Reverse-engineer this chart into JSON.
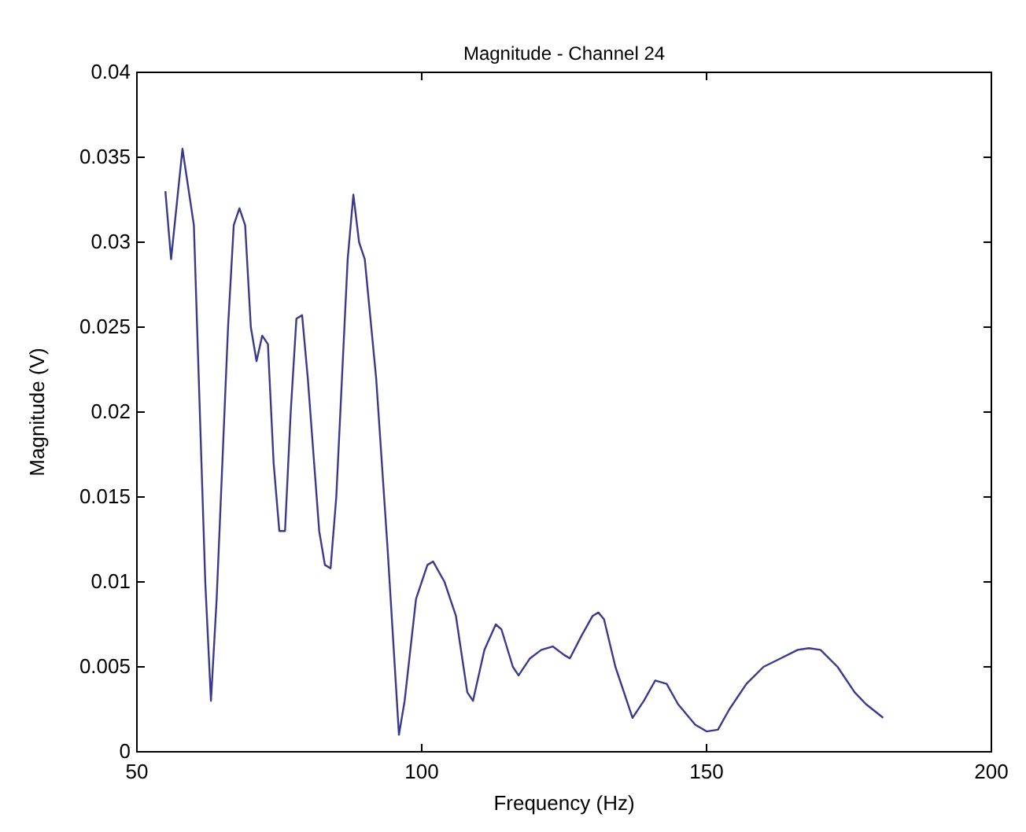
{
  "chart_data": {
    "type": "line",
    "title": "Magnitude - Channel 24",
    "xlabel": "Frequency (Hz)",
    "ylabel": "Magnitude (V)",
    "x": [
      55,
      56,
      58,
      60,
      62,
      63,
      64,
      66,
      67,
      68,
      69,
      70,
      71,
      72,
      73,
      74,
      75,
      76,
      77,
      78,
      79,
      80,
      82,
      83,
      84,
      85,
      86,
      87,
      88,
      89,
      90,
      92,
      94,
      96,
      97,
      99,
      101,
      102,
      104,
      106,
      108,
      109,
      111,
      113,
      114,
      116,
      117,
      119,
      121,
      123,
      125,
      126,
      128,
      130,
      131,
      132,
      134,
      136,
      137,
      139,
      141,
      143,
      145,
      148,
      150,
      152,
      154,
      157,
      160,
      163,
      166,
      168,
      170,
      173,
      176,
      178,
      181
    ],
    "series": [
      {
        "color": "#3a3a8c",
        "values": [
          0.033,
          0.029,
          0.0355,
          0.031,
          0.01,
          0.003,
          0.009,
          0.025,
          0.031,
          0.032,
          0.031,
          0.025,
          0.023,
          0.0245,
          0.024,
          0.017,
          0.013,
          0.013,
          0.02,
          0.0255,
          0.0257,
          0.022,
          0.013,
          0.011,
          0.0108,
          0.015,
          0.022,
          0.029,
          0.0328,
          0.03,
          0.029,
          0.022,
          0.012,
          0.001,
          0.003,
          0.009,
          0.011,
          0.0112,
          0.01,
          0.008,
          0.0035,
          0.003,
          0.006,
          0.0075,
          0.0072,
          0.005,
          0.0045,
          0.0055,
          0.006,
          0.0062,
          0.0057,
          0.0055,
          0.0068,
          0.008,
          0.0082,
          0.0078,
          0.005,
          0.003,
          0.002,
          0.003,
          0.0042,
          0.004,
          0.0028,
          0.0016,
          0.0012,
          0.0013,
          0.0025,
          0.004,
          0.005,
          0.0055,
          0.006,
          0.0061,
          0.006,
          0.005,
          0.0035,
          0.0028,
          0.002
        ]
      }
    ],
    "xlim": [
      50,
      200
    ],
    "xticks": [
      50,
      100,
      150,
      200
    ],
    "ylim": [
      0,
      0.04
    ],
    "yticks": [
      0,
      0.005,
      0.01,
      0.015,
      0.02,
      0.025,
      0.03,
      0.035,
      0.04
    ],
    "grid": false,
    "marker": "none",
    "line_style": "solid"
  }
}
